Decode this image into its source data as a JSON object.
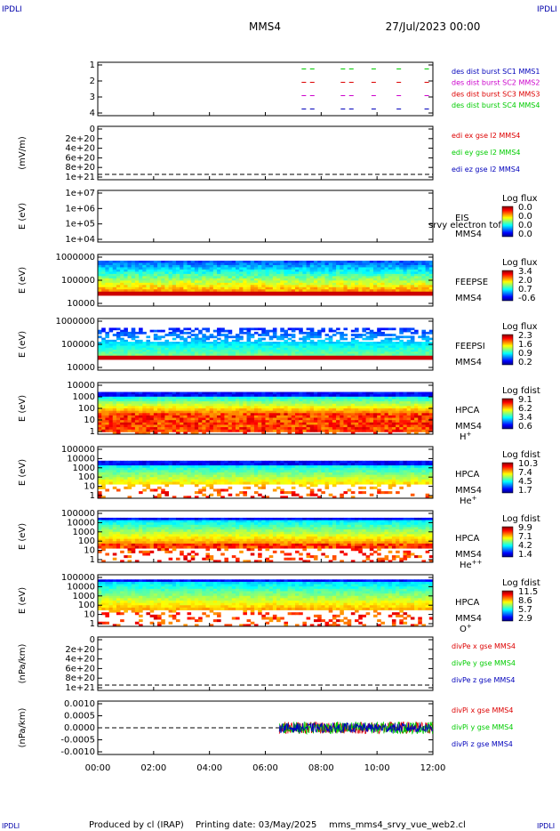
{
  "header": {
    "corner_label": "IPDLI",
    "title": "MMS4",
    "date": "27/Jul/2023 00:00"
  },
  "footer": {
    "produced": "Produced by cl (IRAP)",
    "printing": "Printing date: 03/May/2025",
    "script": "mms_mms4_srvy_vue_web2.cl"
  },
  "colors": {
    "red": "#dd0000",
    "green": "#00cc00",
    "blue": "#0000bb",
    "magenta": "#cc00cc"
  },
  "chart_data": [
    {
      "type": "scatter",
      "name": "burst availability",
      "ylabel": "",
      "ylim": [
        0.5,
        4.5
      ],
      "yticks": [
        "1",
        "2",
        "3",
        "4"
      ],
      "xticks": [
        "00:00",
        "02:00",
        "04:00",
        "06:00",
        "08:00",
        "10:00",
        "12:00"
      ],
      "xlim_hours": [
        0,
        12
      ],
      "series": [
        {
          "name": "des dist burst SC1 MMS1",
          "color": "#0000bb",
          "level": 1
        },
        {
          "name": "des dist burst SC2 MMS2",
          "color": "#cc00cc",
          "level": 2
        },
        {
          "name": "des dist burst SC3 MMS3",
          "color": "#dd0000",
          "level": 3
        },
        {
          "name": "des dist burst SC4 MMS4",
          "color": "#00cc00",
          "level": 4
        }
      ],
      "burst_hours": [
        7.3,
        7.6,
        8.7,
        9.0,
        9.8,
        10.7,
        11.7
      ]
    },
    {
      "type": "line",
      "ylabel": "(mV/m)",
      "yticks": [
        "0",
        "2e+20",
        "4e+20",
        "6e+20",
        "8e+20",
        "1e+21"
      ],
      "series": [
        {
          "name": "edi ex gse l2 MMS4",
          "color": "#dd0000"
        },
        {
          "name": "edi ey gse l2 MMS4",
          "color": "#00cc00"
        },
        {
          "name": "edi ez gse l2 MMS4",
          "color": "#0000bb"
        }
      ]
    },
    {
      "type": "heatmap",
      "ylabel": "E (eV)",
      "yticks": [
        "1e+07",
        "1e+06",
        "1e+05",
        "1e+04"
      ],
      "instrument": "EIS",
      "spacecraft": "MMS4",
      "overlay_text": "srvy electron tof",
      "colorbar_title": "Log flux",
      "colorbar_ticks": [
        "0.0",
        "0.0",
        "0.0",
        "0.0"
      ]
    },
    {
      "type": "heatmap",
      "ylabel": "E (eV)",
      "yticks": [
        "1000000",
        "100000",
        "10000"
      ],
      "instrument": "FEEPSE",
      "spacecraft": "MMS4",
      "colorbar_title": "Log flux",
      "colorbar_ticks": [
        "3.4",
        "2.0",
        "0.7",
        "-0.6"
      ]
    },
    {
      "type": "heatmap",
      "ylabel": "E (eV)",
      "yticks": [
        "1000000",
        "100000",
        "10000"
      ],
      "instrument": "FEEPSI",
      "spacecraft": "MMS4",
      "colorbar_title": "Log flux",
      "colorbar_ticks": [
        "2.3",
        "1.6",
        "0.9",
        "0.2"
      ]
    },
    {
      "type": "heatmap",
      "ylabel": "E (eV)",
      "yticks": [
        "10000",
        "1000",
        "100",
        "10",
        "1"
      ],
      "instrument": "HPCA",
      "spacecraft": "MMS4",
      "species": "H",
      "species_sup": "+",
      "colorbar_title": "Log fdist",
      "colorbar_ticks": [
        "9.1",
        "6.2",
        "3.4",
        "0.6"
      ]
    },
    {
      "type": "heatmap",
      "ylabel": "E (eV)",
      "yticks": [
        "100000",
        "10000",
        "1000",
        "100",
        "10",
        "1"
      ],
      "instrument": "HPCA",
      "spacecraft": "MMS4",
      "species": "He",
      "species_sup": "+",
      "colorbar_title": "Log fdist",
      "colorbar_ticks": [
        "10.3",
        "7.4",
        "4.5",
        "1.7"
      ]
    },
    {
      "type": "heatmap",
      "ylabel": "E (eV)",
      "yticks": [
        "100000",
        "10000",
        "1000",
        "100",
        "10",
        "1"
      ],
      "instrument": "HPCA",
      "spacecraft": "MMS4",
      "species": "He",
      "species_sup": "++",
      "colorbar_title": "Log fdist",
      "colorbar_ticks": [
        "9.9",
        "7.1",
        "4.2",
        "1.4"
      ]
    },
    {
      "type": "heatmap",
      "ylabel": "E (eV)",
      "yticks": [
        "100000",
        "10000",
        "1000",
        "100",
        "10",
        "1"
      ],
      "instrument": "HPCA",
      "spacecraft": "MMS4",
      "species": "O",
      "species_sup": "+",
      "colorbar_title": "Log fdist",
      "colorbar_ticks": [
        "11.5",
        "8.6",
        "5.7",
        "2.9"
      ]
    },
    {
      "type": "line",
      "ylabel": "(nPa/km)",
      "yticks": [
        "0",
        "2e+20",
        "4e+20",
        "6e+20",
        "8e+20",
        "1e+21"
      ],
      "series": [
        {
          "name": "divPe x gse MMS4",
          "color": "#dd0000"
        },
        {
          "name": "divPe y gse MMS4",
          "color": "#00cc00"
        },
        {
          "name": "divPe z gse MMS4",
          "color": "#0000bb"
        }
      ]
    },
    {
      "type": "line",
      "ylabel": "(nPa/km)",
      "yticks": [
        "0.0010",
        "0.0005",
        "0.0000",
        "-0.0005",
        "-0.0010"
      ],
      "ylim": [
        -0.0011,
        0.0011
      ],
      "data_start_hour": 6.5,
      "noise_amplitude": 0.00025,
      "series": [
        {
          "name": "divPi x gse MMS4",
          "color": "#dd0000"
        },
        {
          "name": "divPi y gse MMS4",
          "color": "#00cc00"
        },
        {
          "name": "divPi z gse MMS4",
          "color": "#0000bb"
        }
      ]
    }
  ]
}
